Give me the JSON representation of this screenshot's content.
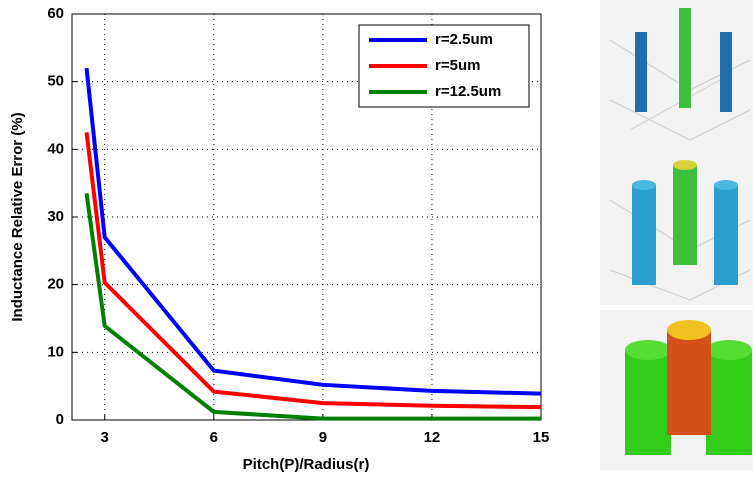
{
  "chart_data": {
    "type": "line",
    "xlabel": "Pitch(P)/Radius(r)",
    "ylabel": "Inductance Relative Error (%)",
    "x": [
      2.5,
      3,
      6,
      9,
      12,
      15
    ],
    "series": [
      {
        "name": "r=2.5um",
        "color": "#0000ff",
        "values": [
          52,
          27,
          7.3,
          5.2,
          4.3,
          3.9
        ]
      },
      {
        "name": "r=5um",
        "color": "#ff0000",
        "values": [
          42.5,
          20.3,
          4.2,
          2.5,
          2.1,
          1.9
        ]
      },
      {
        "name": "r=12.5um",
        "color": "#008000",
        "values": [
          33.5,
          13.9,
          1.2,
          0.2,
          0.2,
          0.2
        ]
      }
    ],
    "xlim": [
      2.1,
      15
    ],
    "xticks": [
      3,
      6,
      9,
      12,
      15
    ],
    "ylim": [
      0,
      60
    ],
    "yticks": [
      0,
      10,
      20,
      30,
      40,
      50,
      60
    ],
    "grid": true,
    "legend": "upper right"
  }
}
